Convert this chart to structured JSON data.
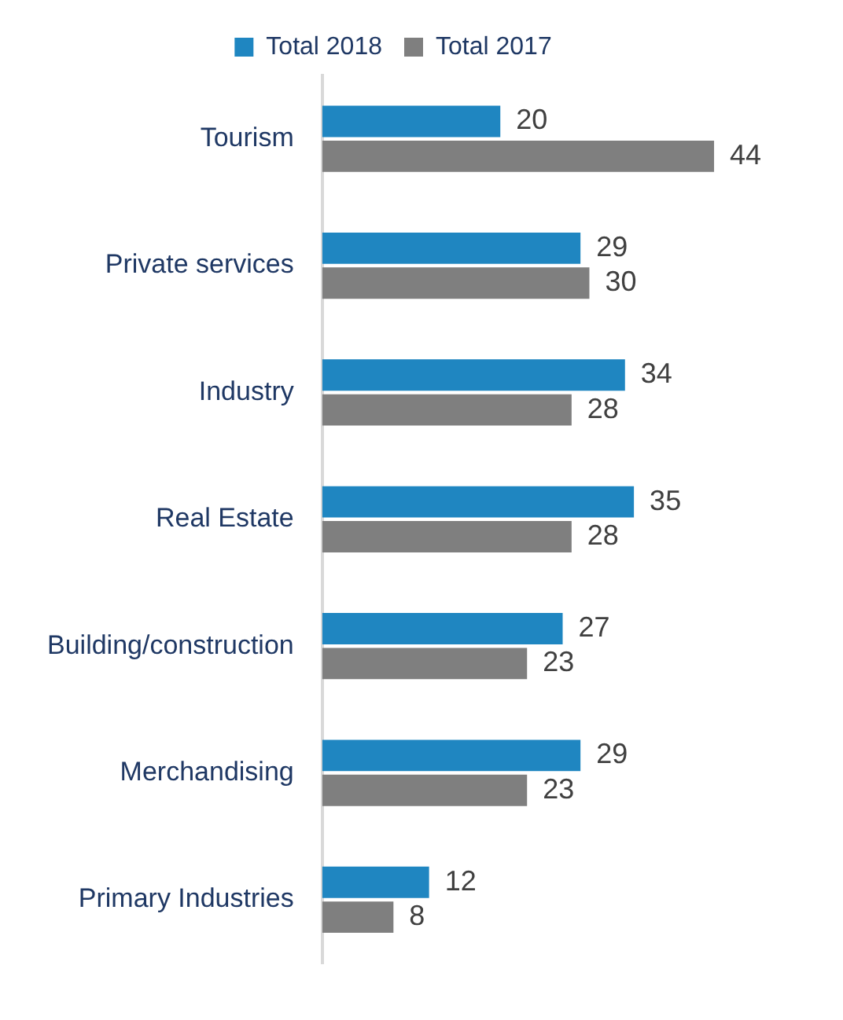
{
  "chart_data": {
    "type": "bar",
    "orientation": "horizontal",
    "categories": [
      "Tourism",
      "Private services",
      "Industry",
      "Real Estate",
      "Building/construction",
      "Merchandising",
      "Primary Industries"
    ],
    "series": [
      {
        "name": "Total 2018",
        "color": "#1f86c1",
        "values": [
          20,
          29,
          34,
          35,
          27,
          29,
          12
        ]
      },
      {
        "name": "Total 2017",
        "color": "#7f7f7f",
        "values": [
          44,
          30,
          28,
          28,
          23,
          23,
          8
        ]
      }
    ],
    "data_labels": true,
    "legend": "top"
  }
}
